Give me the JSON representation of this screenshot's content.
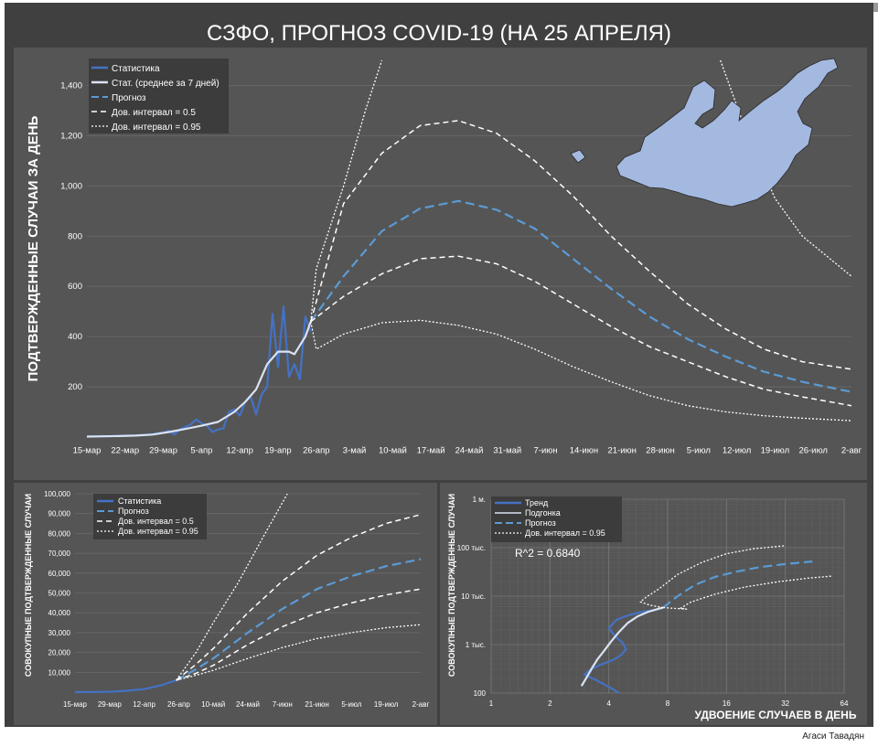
{
  "page": {
    "title": "СЗФО, ПРОГНОЗ COVID-19 (НА 25 АПРЕЛЯ)",
    "author": "Агаси Тавадян"
  },
  "colors": {
    "background": "#404040",
    "panel": "#555555",
    "stats": "#4472c4",
    "avg": "#dae3f3",
    "forecast": "#5b9bd5",
    "ci": "#ffffff",
    "map": "#a4b9e0"
  },
  "chart_data": [
    {
      "id": "daily",
      "type": "line",
      "title": "",
      "ylabel": "ПОДТВЕРЖДЕННЫЕ СЛУЧАИ ЗА ДЕНЬ",
      "xlabel": "",
      "ylim": [
        0,
        1500
      ],
      "xlim": [
        "2020-03-15",
        "2020-08-02"
      ],
      "x_ticks": [
        "15-мар",
        "22-мар",
        "29-мар",
        "5-апр",
        "12-апр",
        "19-апр",
        "26-апр",
        "3-май",
        "10-май",
        "17-май",
        "24-май",
        "31-май",
        "7-июн",
        "14-июн",
        "21-июн",
        "28-июн",
        "5-июл",
        "12-июл",
        "19-июл",
        "26-июл",
        "2-авг"
      ],
      "y_ticks": [
        "200",
        "400",
        "600",
        "800",
        "1,000",
        "1,200",
        "1,400"
      ],
      "y_tick_values": [
        200,
        400,
        600,
        800,
        1000,
        1200,
        1400
      ],
      "legend": [
        "Статистика",
        "Стат. (среднее за 7 дней)",
        "Прогноз",
        "Дов. интервал = 0.5",
        "Дов. интервал = 0.95"
      ],
      "series": [
        {
          "name": "Статистика",
          "style": "stats",
          "x": [
            "2020-03-15",
            "2020-03-16",
            "2020-03-17",
            "2020-03-18",
            "2020-03-19",
            "2020-03-20",
            "2020-03-21",
            "2020-03-22",
            "2020-03-23",
            "2020-03-24",
            "2020-03-25",
            "2020-03-26",
            "2020-03-27",
            "2020-03-28",
            "2020-03-29",
            "2020-03-30",
            "2020-03-31",
            "2020-04-01",
            "2020-04-02",
            "2020-04-03",
            "2020-04-04",
            "2020-04-05",
            "2020-04-06",
            "2020-04-07",
            "2020-04-08",
            "2020-04-09",
            "2020-04-10",
            "2020-04-11",
            "2020-04-12",
            "2020-04-13",
            "2020-04-14",
            "2020-04-15",
            "2020-04-16",
            "2020-04-17",
            "2020-04-18",
            "2020-04-19",
            "2020-04-20",
            "2020-04-21",
            "2020-04-22",
            "2020-04-23",
            "2020-04-24",
            "2020-04-25"
          ],
          "values": [
            2,
            3,
            2,
            4,
            3,
            5,
            4,
            6,
            5,
            7,
            8,
            10,
            12,
            15,
            18,
            25,
            10,
            30,
            40,
            50,
            70,
            55,
            45,
            20,
            30,
            35,
            100,
            110,
            85,
            140,
            160,
            90,
            170,
            200,
            490,
            280,
            520,
            240,
            290,
            230,
            480,
            420
          ]
        },
        {
          "name": "Стат. (среднее за 7 дней)",
          "style": "avg",
          "x": [
            "2020-03-15",
            "2020-03-18",
            "2020-03-21",
            "2020-03-24",
            "2020-03-27",
            "2020-03-30",
            "2020-04-02",
            "2020-04-05",
            "2020-04-08",
            "2020-04-11",
            "2020-04-13",
            "2020-04-15",
            "2020-04-17",
            "2020-04-19",
            "2020-04-21",
            "2020-04-22",
            "2020-04-24",
            "2020-04-25"
          ],
          "values": [
            2,
            3,
            4,
            6,
            10,
            20,
            32,
            45,
            60,
            100,
            140,
            190,
            290,
            340,
            340,
            330,
            400,
            460
          ]
        },
        {
          "name": "Прогноз",
          "style": "forecast",
          "x": [
            "2020-04-25",
            "2020-05-01",
            "2020-05-08",
            "2020-05-15",
            "2020-05-22",
            "2020-05-29",
            "2020-06-05",
            "2020-06-12",
            "2020-06-19",
            "2020-06-26",
            "2020-07-03",
            "2020-07-10",
            "2020-07-17",
            "2020-07-24",
            "2020-08-02"
          ],
          "values": [
            460,
            640,
            820,
            910,
            940,
            905,
            830,
            710,
            590,
            480,
            390,
            320,
            260,
            220,
            180
          ]
        },
        {
          "name": "Дов. интервал = 0.5",
          "style": "ci50",
          "x": [
            "2020-04-25",
            "2020-05-01",
            "2020-05-08",
            "2020-05-15",
            "2020-05-22",
            "2020-05-29",
            "2020-06-05",
            "2020-06-12",
            "2020-06-19",
            "2020-06-26",
            "2020-07-03",
            "2020-07-10",
            "2020-07-17",
            "2020-07-24",
            "2020-08-02"
          ],
          "values": [
            460,
            930,
            1130,
            1240,
            1260,
            1210,
            1100,
            960,
            800,
            660,
            530,
            430,
            350,
            300,
            270
          ]
        },
        {
          "name": "Дов. интервал = 0.5",
          "style": "ci50",
          "x": [
            "2020-04-25",
            "2020-05-01",
            "2020-05-08",
            "2020-05-15",
            "2020-05-22",
            "2020-05-29",
            "2020-06-05",
            "2020-06-12",
            "2020-06-19",
            "2020-06-26",
            "2020-07-03",
            "2020-07-10",
            "2020-07-17",
            "2020-07-24",
            "2020-08-02"
          ],
          "values": [
            460,
            560,
            650,
            710,
            720,
            690,
            620,
            530,
            440,
            360,
            300,
            240,
            190,
            160,
            125
          ]
        },
        {
          "name": "Дов. интервал = 0.95",
          "style": "ci95",
          "x": [
            "2020-04-25",
            "2020-04-26",
            "2020-05-01",
            "2020-05-05",
            "2020-05-08"
          ],
          "values": [
            460,
            670,
            1000,
            1300,
            1500
          ]
        },
        {
          "name": "Дов. интервал = 0.95",
          "style": "ci95",
          "x": [
            "2020-04-25",
            "2020-04-26",
            "2020-05-01",
            "2020-05-08",
            "2020-05-15",
            "2020-05-22",
            "2020-05-29",
            "2020-06-05",
            "2020-06-12",
            "2020-06-19",
            "2020-06-26",
            "2020-07-03",
            "2020-07-10",
            "2020-07-17",
            "2020-07-24",
            "2020-08-02"
          ],
          "values": [
            460,
            350,
            410,
            455,
            465,
            445,
            410,
            350,
            280,
            220,
            165,
            125,
            100,
            85,
            75,
            65
          ]
        },
        {
          "name": "Дов. интервал = 0.95",
          "style": "ci95",
          "x": [
            "2020-07-09",
            "2020-07-14",
            "2020-07-19",
            "2020-07-24",
            "2020-08-02"
          ],
          "values": [
            1500,
            1200,
            950,
            800,
            640
          ]
        }
      ]
    },
    {
      "id": "cumulative",
      "type": "line",
      "title": "",
      "ylabel": "СОВОКУПНЫЕ ПОДТВЕРЖДЕННЫЕ СЛУЧАИ",
      "xlabel": "",
      "ylim": [
        0,
        100000
      ],
      "xlim": [
        "2020-03-15",
        "2020-08-02"
      ],
      "x_ticks": [
        "15-мар",
        "29-мар",
        "12-апр",
        "26-апр",
        "10-май",
        "24-май",
        "7-июн",
        "21-июн",
        "5-июл",
        "19-июл",
        "2-авг"
      ],
      "y_ticks": [
        "10,000",
        "20,000",
        "30,000",
        "40,000",
        "50,000",
        "60,000",
        "70,000",
        "80,000",
        "90,000",
        "100,000"
      ],
      "y_tick_values": [
        10000,
        20000,
        30000,
        40000,
        50000,
        60000,
        70000,
        80000,
        90000,
        100000
      ],
      "legend": [
        "Статистика",
        "Прогноз",
        "Дов. интервал = 0.5",
        "Дов. интервал = 0.95"
      ],
      "series": [
        {
          "name": "Статистика",
          "style": "stats",
          "x": [
            "2020-03-15",
            "2020-03-29",
            "2020-04-05",
            "2020-04-12",
            "2020-04-19",
            "2020-04-25"
          ],
          "values": [
            0,
            200,
            700,
            1500,
            3500,
            6000
          ]
        },
        {
          "name": "Прогноз",
          "style": "forecast",
          "x": [
            "2020-04-25",
            "2020-05-03",
            "2020-05-10",
            "2020-05-24",
            "2020-06-07",
            "2020-06-21",
            "2020-07-05",
            "2020-07-19",
            "2020-08-02"
          ],
          "values": [
            6000,
            11500,
            17000,
            30000,
            42000,
            52000,
            58500,
            63500,
            67000
          ]
        },
        {
          "name": "Дов. интервал = 0.5",
          "style": "ci50",
          "x": [
            "2020-04-25",
            "2020-05-03",
            "2020-05-10",
            "2020-05-24",
            "2020-06-07",
            "2020-06-21",
            "2020-07-05",
            "2020-07-19",
            "2020-08-02"
          ],
          "values": [
            6000,
            14000,
            22000,
            40000,
            56000,
            69000,
            78000,
            85000,
            89500
          ]
        },
        {
          "name": "Дов. интервал = 0.5",
          "style": "ci50",
          "x": [
            "2020-04-25",
            "2020-05-03",
            "2020-05-10",
            "2020-05-24",
            "2020-06-07",
            "2020-06-21",
            "2020-07-05",
            "2020-07-19",
            "2020-08-02"
          ],
          "values": [
            6000,
            9500,
            13500,
            24000,
            33000,
            40000,
            45000,
            49000,
            52000
          ]
        },
        {
          "name": "Дов. интервал = 0.95",
          "style": "ci95",
          "x": [
            "2020-04-25",
            "2020-05-03",
            "2020-05-10",
            "2020-05-20",
            "2020-05-31",
            "2020-06-09"
          ],
          "values": [
            6000,
            20000,
            35000,
            55000,
            80000,
            100000
          ]
        },
        {
          "name": "Дов. интервал = 0.95",
          "style": "ci95",
          "x": [
            "2020-04-25",
            "2020-05-03",
            "2020-05-10",
            "2020-05-24",
            "2020-06-07",
            "2020-06-21",
            "2020-07-05",
            "2020-07-19",
            "2020-08-02"
          ],
          "values": [
            6000,
            8500,
            11000,
            17000,
            22500,
            27000,
            30000,
            32500,
            34000
          ]
        }
      ]
    },
    {
      "id": "doubling",
      "type": "line",
      "title": "",
      "ylabel": "СОВОКУПНЫЕ ПОДТВЕРЖДЕННЫЕ СЛУЧАИ",
      "xlabel": "УДВОЕНИЕ СЛУЧАЕВ В ДЕНЬ",
      "xscale": "log",
      "yscale": "log",
      "xlim": [
        1,
        64
      ],
      "ylim": [
        100,
        1000000
      ],
      "x_ticks": [
        "1",
        "2",
        "4",
        "8",
        "16",
        "32",
        "64"
      ],
      "x_tick_values": [
        1,
        2,
        4,
        8,
        16,
        32,
        64
      ],
      "y_ticks": [
        "100",
        "1 тыс.",
        "10 тыс.",
        "100 тыс.",
        "1 м."
      ],
      "y_tick_values": [
        100,
        1000,
        10000,
        100000,
        1000000
      ],
      "annotation": "R^2 = 0.6840",
      "legend": [
        "Тренд",
        "Подгонка",
        "Прогноз",
        "Дов. интервал = 0.95"
      ],
      "series": [
        {
          "name": "Тренд",
          "style": "stats",
          "x": [
            4.5,
            4.2,
            3.8,
            3.4,
            3.0,
            3.2,
            3.6,
            4.2,
            4.6,
            4.9,
            4.7,
            4.3,
            4.0,
            4.4,
            5.2,
            6.0,
            7.0
          ],
          "y": [
            100,
            120,
            150,
            190,
            240,
            300,
            380,
            480,
            600,
            800,
            1100,
            1500,
            2200,
            3300,
            4200,
            4800,
            5200
          ]
        },
        {
          "name": "Подгонка",
          "style": "avg",
          "x": [
            2.9,
            3.1,
            3.3,
            3.5,
            3.8,
            4.1,
            4.5,
            5.0,
            5.6,
            6.4,
            7.2,
            7.6
          ],
          "y": [
            140,
            220,
            340,
            500,
            760,
            1150,
            1800,
            2800,
            3800,
            4800,
            5500,
            5800
          ]
        },
        {
          "name": "Прогноз",
          "style": "forecast",
          "x": [
            7.6,
            9,
            11,
            14,
            18,
            24,
            32,
            44
          ],
          "y": [
            5800,
            10000,
            17000,
            25000,
            32000,
            40000,
            46000,
            52000
          ]
        },
        {
          "name": "Дов. интервал = 0.95",
          "style": "ci95",
          "x": [
            7.6,
            6.5,
            5.8,
            6.2,
            7.2,
            9,
            12,
            16,
            22,
            32
          ],
          "y": [
            5800,
            6500,
            7600,
            9500,
            14000,
            28000,
            50000,
            75000,
            95000,
            110000
          ]
        },
        {
          "name": "Дов. интервал = 0.95",
          "style": "ci95",
          "x": [
            7.6,
            8.5,
            9.5,
            10,
            9.3,
            10.5,
            14,
            20,
            30,
            42,
            56
          ],
          "y": [
            5800,
            5600,
            5500,
            5400,
            5600,
            7500,
            11000,
            15500,
            20000,
            23500,
            26000
          ]
        }
      ]
    }
  ]
}
